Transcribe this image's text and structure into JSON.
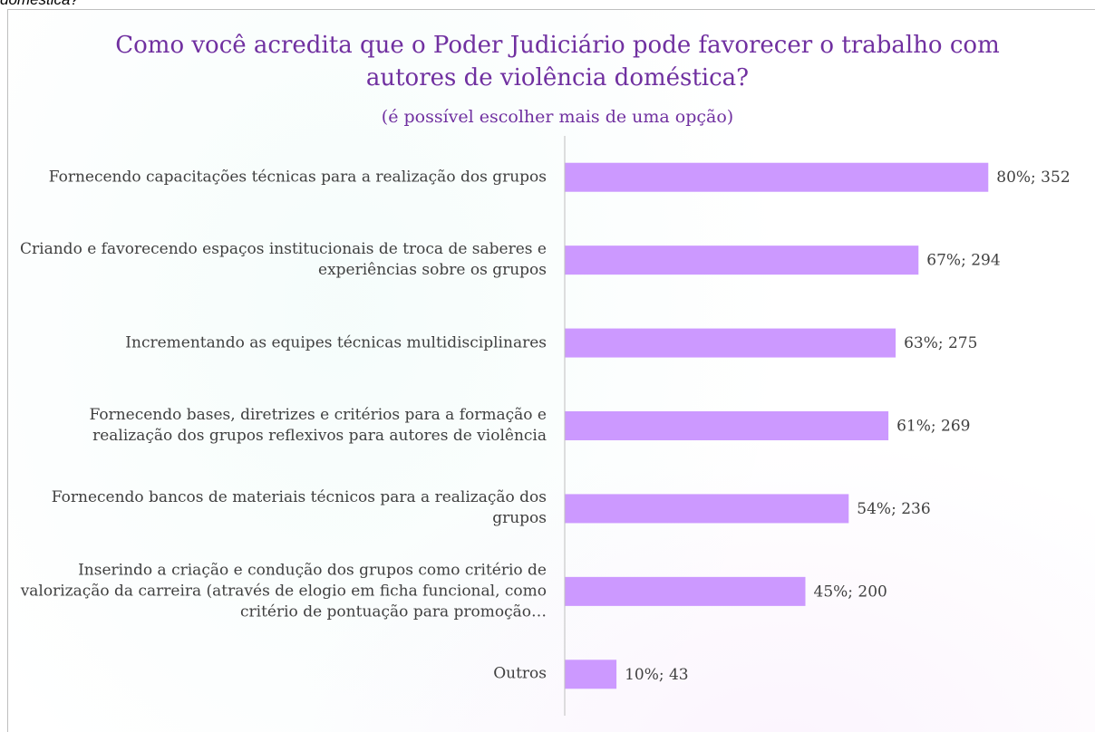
{
  "page_header": "doméstica?",
  "chart_data": {
    "type": "bar",
    "orientation": "horizontal",
    "title": "Como você acredita que o Poder Judiciário pode favorecer o trabalho com autores de violência doméstica?",
    "subtitle": "(é possível escolher mais de uma opção)",
    "categories": [
      "Fornecendo capacitações técnicas para a realização dos grupos",
      "Criando e favorecendo espaços institucionais de troca de saberes e experiências sobre os grupos",
      "Incrementando as equipes técnicas multidisciplinares",
      "Fornecendo bases, diretrizes e critérios para a formação e realização dos grupos reflexivos para autores de violência",
      "Fornecendo bancos de materiais técnicos para a realização dos grupos",
      "Inserindo a criação e condução dos grupos como critério de valorização da carreira (através de elogio em ficha funcional, como critério de pontuação para promoção…",
      "Outros"
    ],
    "values": [
      352,
      294,
      275,
      269,
      236,
      200,
      43
    ],
    "value_labels": [
      "80%; 352",
      "67%; 294",
      "63%; 275",
      "61%; 269",
      "54%; 236",
      "45%; 200",
      "10%; 43"
    ],
    "color": "#cc99ff",
    "xlim": [
      0,
      400
    ]
  }
}
